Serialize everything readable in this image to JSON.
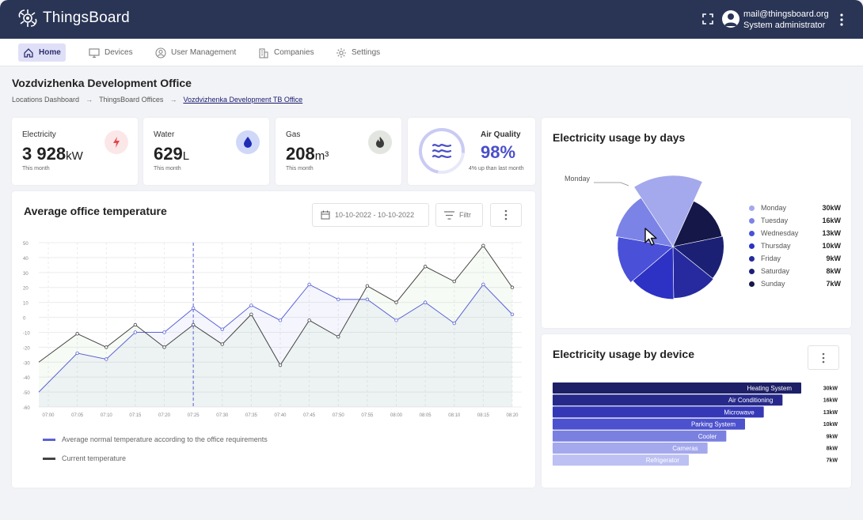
{
  "app": {
    "name": "ThingsBoard"
  },
  "user": {
    "email": "mail@thingsboard.org",
    "role": "System administrator"
  },
  "nav": [
    {
      "label": "Home",
      "icon": "home-icon",
      "active": true
    },
    {
      "label": "Devices",
      "icon": "monitor-icon",
      "active": false
    },
    {
      "label": "User Management",
      "icon": "user-icon",
      "active": false
    },
    {
      "label": "Companies",
      "icon": "building-icon",
      "active": false
    },
    {
      "label": "Settings",
      "icon": "gear-icon",
      "active": false
    }
  ],
  "page": {
    "title": "Vozdvizhenka Development Office",
    "breadcrumbs": [
      "Locations Dashboard",
      "ThingsBoard Offices",
      "Vozdvizhenka Development TB Office"
    ]
  },
  "stats": {
    "electricity": {
      "label": "Electricity",
      "value": "3 928",
      "unit": "kW",
      "sub": "This month",
      "icon": "lightning-icon",
      "color": "#e5484d",
      "bg": "#fbe7e8"
    },
    "water": {
      "label": "Water",
      "value": "629",
      "unit": "L",
      "sub": "This month",
      "icon": "drop-icon",
      "color": "#3c4fd6",
      "bg": "#cfd8f8"
    },
    "gas": {
      "label": "Gas",
      "value": "208",
      "unit": "m³",
      "sub": "This month",
      "icon": "flame-icon",
      "color": "#3b3b3b",
      "bg": "#e2e5e0"
    },
    "air": {
      "label": "Air Quality",
      "value": "98%",
      "sub": "4% up than last month",
      "icon": "wind-icon",
      "color": "#4a4fc9",
      "level": 0.98
    }
  },
  "temperature": {
    "title": "Average office temperature",
    "date_range": "10-10-2022 - 10-10-2022",
    "filter_label": "Filtr",
    "legend": [
      {
        "name": "Average normal temperature according to the office requirements",
        "color": "#5a62d6"
      },
      {
        "name": "Current temperature",
        "color": "#444444"
      }
    ]
  },
  "chart_data": [
    {
      "type": "line",
      "title": "Average office temperature",
      "x": [
        "07:00",
        "07:05",
        "07:10",
        "07:15",
        "07:20",
        "07:25",
        "07:30",
        "07:35",
        "07:40",
        "07:45",
        "07:50",
        "07:55",
        "08:00",
        "08:05",
        "08:10",
        "08:15",
        "08:20"
      ],
      "x_label_positions": [
        "07:00",
        "07:05",
        "07:10",
        "07:15",
        "07:20",
        "07:25",
        "07:30",
        "07:35",
        "07:40",
        "07:45",
        "07:50",
        "07:55",
        "08:00",
        "08:05",
        "08:10",
        "08:15",
        "08:20"
      ],
      "yticks": [
        50,
        40,
        30,
        20,
        10,
        0,
        -10,
        -20,
        -30,
        -40,
        -50,
        -60
      ],
      "ylim": [
        -60,
        50
      ],
      "grid": true,
      "series": [
        {
          "name": "Average normal temperature according to the office requirements",
          "color": "#5a62d6",
          "points": [
            [
              -1.5,
              -50
            ],
            [
              1,
              -24
            ],
            [
              2,
              -28
            ],
            [
              3,
              -10
            ],
            [
              4,
              -10
            ],
            [
              5,
              6
            ],
            [
              6,
              -8
            ],
            [
              7,
              8
            ],
            [
              8,
              -2
            ],
            [
              9,
              22
            ],
            [
              10,
              12
            ],
            [
              11,
              12
            ],
            [
              12,
              -2
            ],
            [
              13,
              10
            ],
            [
              14,
              -4
            ],
            [
              15,
              22
            ],
            [
              16,
              2
            ]
          ]
        },
        {
          "name": "Current temperature",
          "color": "#444444",
          "points": [
            [
              -1.5,
              -30
            ],
            [
              1,
              -11
            ],
            [
              2,
              -20
            ],
            [
              3,
              -5
            ],
            [
              4,
              -20
            ],
            [
              5,
              -5
            ],
            [
              6,
              -18
            ],
            [
              7,
              2
            ],
            [
              8,
              -32
            ],
            [
              9,
              -2
            ],
            [
              10,
              -13
            ],
            [
              11,
              21
            ],
            [
              12,
              10
            ],
            [
              13,
              34
            ],
            [
              14,
              24
            ],
            [
              15,
              48
            ],
            [
              16,
              20
            ]
          ]
        }
      ]
    },
    {
      "type": "pie",
      "title": "Electricity usage by days",
      "categories": [
        "Monday",
        "Tuesday",
        "Wednesday",
        "Thursday",
        "Friday",
        "Saturday",
        "Sunday"
      ],
      "values": [
        30,
        16,
        13,
        10,
        9,
        8,
        7
      ],
      "labels": [
        "30kW",
        "16kW",
        "13kW",
        "10kW",
        "9kW",
        "8kW",
        "7kW"
      ],
      "colors": [
        "#a4a8ec",
        "#7c83e6",
        "#4a50d8",
        "#2d31c4",
        "#262a9e",
        "#1c2074",
        "#141748"
      ],
      "annotation": "Monday"
    },
    {
      "type": "bar",
      "title": "Electricity usage by device",
      "categories": [
        "Heating System",
        "Air Conditioning",
        "Microwave",
        "Parking System",
        "Cooler",
        "Cameras",
        "Refrigerator"
      ],
      "values": [
        30,
        16,
        13,
        10,
        9,
        8,
        7
      ],
      "labels": [
        "30kW",
        "16kW",
        "13kW",
        "10kW",
        "9kW",
        "8kW",
        "7kW"
      ],
      "colors": [
        "#1d2066",
        "#26298a",
        "#3538b6",
        "#4c51cd",
        "#7a80e0",
        "#a4a8ec",
        "#bcc0f2"
      ]
    }
  ],
  "pie_card": {
    "title": "Electricity usage by days",
    "annotation": "Monday"
  },
  "bar_card": {
    "title": "Electricity usage by device"
  }
}
